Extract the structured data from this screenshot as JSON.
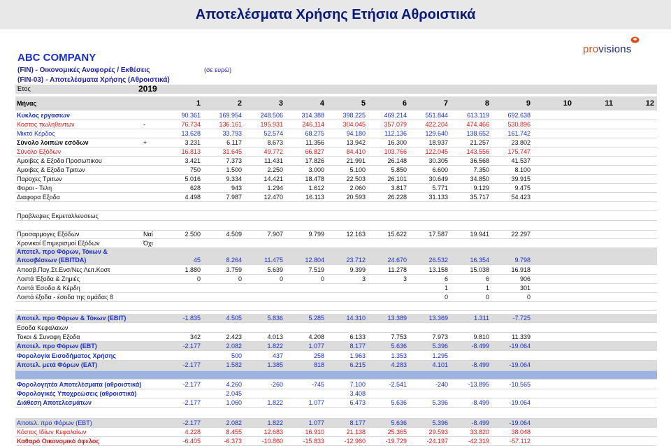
{
  "header": {
    "title": "Αποτελέσματα Χρήσης Ετήσια Αθροιστικά"
  },
  "company": "ABC COMPANY",
  "subtitle1": "(FIN) - Οικονομικές Αναφορές / Εκθέσεις",
  "subtitle2": "(FIN-03) - Αποτελέσματα Χρήσης (Αθροιστικά)",
  "currency_note": "(σε ευρώ)",
  "logo": {
    "part1": "pro",
    "part2": "visions",
    "icon": "orange-lens-icon"
  },
  "year_label": "Έτος",
  "year_value": "2019",
  "months_label": "Μήνας",
  "months": [
    "1",
    "2",
    "3",
    "4",
    "5",
    "6",
    "7",
    "8",
    "9",
    "10",
    "11",
    "12"
  ],
  "colors": {
    "blue": "#1a2fd0",
    "red": "#e01818",
    "gray_row": "#dcdcdc",
    "band": "#9db4e0"
  },
  "rows": [
    {
      "label": "Κυκλος εργασιων",
      "extra": "",
      "color": "blue",
      "bold": true,
      "values": [
        "90.361",
        "169.954",
        "248.506",
        "314.388",
        "398.225",
        "469.214",
        "551.844",
        "613.119",
        "692.638"
      ]
    },
    {
      "label": "Κοστος πωληθεντων",
      "extra": "-",
      "color": "red",
      "bold": false,
      "values": [
        "76.734",
        "136.161",
        "195.931",
        "246.114",
        "304.045",
        "357.079",
        "422.204",
        "474.466",
        "530.896"
      ]
    },
    {
      "label": "Μικτό Κέρδος",
      "extra": "",
      "color": "blue",
      "bold": false,
      "values": [
        "13.628",
        "33.793",
        "52.574",
        "68.275",
        "94.180",
        "112.136",
        "129.640",
        "138.652",
        "161.742"
      ]
    },
    {
      "label": "Σύνολο λοιπών εσόδων",
      "extra": "+",
      "color": "black",
      "bold": true,
      "values": [
        "3.231",
        "6.117",
        "8.673",
        "11.356",
        "13.942",
        "16.300",
        "18.937",
        "21.257",
        "23.802"
      ]
    },
    {
      "label": "Σύνολο Εξόδων",
      "extra": "",
      "color": "red",
      "bold": false,
      "values": [
        "16.813",
        "31.645",
        "49.772",
        "66.827",
        "84.410",
        "103.766",
        "122.045",
        "143.556",
        "175.747"
      ]
    },
    {
      "label": "Αμοιβες & Εξοδα Προσωπικου",
      "extra": "",
      "color": "black",
      "bold": false,
      "values": [
        "3.421",
        "7.373",
        "11.431",
        "17.826",
        "21.991",
        "26.148",
        "30.305",
        "36.568",
        "41.537"
      ]
    },
    {
      "label": "Αμοιβες & Εξοδα Τριτων",
      "extra": "",
      "color": "black",
      "bold": false,
      "values": [
        "750",
        "1.500",
        "2.250",
        "3.000",
        "5.100",
        "5.850",
        "6.600",
        "7.350",
        "8.100"
      ]
    },
    {
      "label": "Παροχες Τριτων",
      "extra": "",
      "color": "black",
      "bold": false,
      "values": [
        "5.016",
        "9.334",
        "14.421",
        "18.478",
        "22.503",
        "26.101",
        "30.649",
        "34.850",
        "39.915"
      ]
    },
    {
      "label": "Φοροι - Τελη",
      "extra": "",
      "color": "black",
      "bold": false,
      "values": [
        "628",
        "943",
        "1.294",
        "1.612",
        "2.060",
        "3.817",
        "5.771",
        "9.129",
        "9.475"
      ]
    },
    {
      "label": "Διαφορα Εξοδα",
      "extra": "",
      "color": "black",
      "bold": false,
      "values": [
        "4.498",
        "7.987",
        "12.470",
        "16.113",
        "20.593",
        "26.228",
        "31.133",
        "35.717",
        "54.423"
      ]
    },
    {
      "label": "",
      "extra": "",
      "color": "black",
      "bold": false,
      "values": []
    },
    {
      "label": "Προβλεψεις Εκμεταλλευσεως",
      "extra": "",
      "color": "black",
      "bold": false,
      "values": []
    },
    {
      "label": "",
      "extra": "",
      "color": "black",
      "bold": false,
      "values": []
    },
    {
      "label": "Προσαρμογες Εξόδων",
      "extra": "Ναί",
      "color": "black",
      "bold": false,
      "values": [
        "2.500",
        "4.509",
        "7.907",
        "9.799",
        "12.163",
        "15.622",
        "17.587",
        "19.941",
        "22.297"
      ]
    },
    {
      "label": "Χρονικοί Επιμερισμοί Εξόδων",
      "extra": "Όχι",
      "color": "black",
      "bold": false,
      "values": []
    },
    {
      "label": "Αποτελ. προ Φόρων, Τόκων & Αποσβέσεων (EBITDA)",
      "extra": "",
      "color": "blue",
      "bold": true,
      "values": [
        "45",
        "8.264",
        "11.475",
        "12.804",
        "23.712",
        "24.670",
        "26.532",
        "16.354",
        "9.798"
      ]
    },
    {
      "label": "Αποσβ.Παγ.Στ.Ενσ/Νες Λειτ.Κοστ",
      "extra": "",
      "color": "black",
      "bold": false,
      "values": [
        "1.880",
        "3.759",
        "5.639",
        "7.519",
        "9.399",
        "11.278",
        "13.158",
        "15.038",
        "16.918"
      ]
    },
    {
      "label": "Λοιπά Έξοδα & Ζημιές",
      "extra": "",
      "color": "black",
      "bold": false,
      "values": [
        "0",
        "0",
        "0",
        "0",
        "3",
        "3",
        "6",
        "6",
        "906"
      ]
    },
    {
      "label": "Λοιπά Έσοδα & Κέρδη",
      "extra": "",
      "color": "black",
      "bold": false,
      "values": [
        "",
        "",
        "",
        "",
        "",
        "",
        "1",
        "1",
        "301"
      ]
    },
    {
      "label": "Λοιπά έξοδα - έσοδα της ομάδας 8",
      "extra": "",
      "color": "black",
      "bold": false,
      "values": [
        "",
        "",
        "",
        "",
        "",
        "",
        "0",
        "0",
        "0"
      ]
    },
    {
      "label": "",
      "extra": "",
      "color": "black",
      "bold": false,
      "values": []
    },
    {
      "label": "Αποτελ. προ Φόρων & Τόκων (EBIT)",
      "extra": "",
      "color": "blue",
      "bold": true,
      "values": [
        "-1.835",
        "4.505",
        "5.836",
        "5.285",
        "14.310",
        "13.389",
        "13.369",
        "1.311",
        "-7.725"
      ]
    },
    {
      "label": "Εσοδα Κεφαλαιων",
      "extra": "",
      "color": "black",
      "bold": false,
      "values": []
    },
    {
      "label": "Τοκοι & Συναφη Εξοδα",
      "extra": "",
      "color": "black",
      "bold": false,
      "values": [
        "342",
        "2.423",
        "4.013",
        "4.208",
        "6.133",
        "7.753",
        "7.973",
        "9.810",
        "11.339"
      ]
    },
    {
      "label": "Αποτελ. προ Φόρων (EBT)",
      "extra": "",
      "color": "blue",
      "bold": true,
      "values": [
        "-2.177",
        "2.082",
        "1.822",
        "1.077",
        "8.177",
        "5.636",
        "5.396",
        "-8.499",
        "-19.064"
      ]
    },
    {
      "label": "Φορολογία Εισοδήματος Χρήσης",
      "extra": "",
      "color": "blue",
      "bold": true,
      "values": [
        "",
        "500",
        "437",
        "258",
        "1.963",
        "1.353",
        "1.295",
        "",
        ""
      ]
    },
    {
      "label": "Αποτελ. μετά Φόρων (EAT)",
      "extra": "",
      "color": "blue",
      "bold": true,
      "values": [
        "-2.177",
        "1.582",
        "1.385",
        "818",
        "6.215",
        "4.283",
        "4.101",
        "-8.499",
        "-19.064"
      ]
    },
    {
      "label": "",
      "extra": "",
      "color": "black",
      "bold": false,
      "values": []
    },
    {
      "label": "Φορολογητέα Αποτελέσματα (αθροιστικά)",
      "extra": "",
      "color": "blue",
      "bold": true,
      "values": [
        "-2.177",
        "4.260",
        "-260",
        "-745",
        "7.100",
        "-2.541",
        "-240",
        "-13.895",
        "-10.565"
      ]
    },
    {
      "label": "Φορολογικές Υποχρεώσεις (αθροιστικά)",
      "extra": "",
      "color": "blue",
      "bold": true,
      "values": [
        "",
        "2.045",
        "",
        "",
        "3.408",
        "",
        "",
        "",
        ""
      ]
    },
    {
      "label": "Διάθεση Αποτελεσμάτων",
      "extra": "",
      "color": "blue",
      "bold": true,
      "values": [
        "-2.177",
        "1.060",
        "1.822",
        "1.077",
        "6.473",
        "5.636",
        "5.396",
        "-8.499",
        "-19.064"
      ]
    },
    {
      "label": "",
      "extra": "",
      "color": "black",
      "bold": false,
      "values": []
    },
    {
      "label": "Αποτελ. προ Φόρων (EBT)",
      "extra": "",
      "color": "blue",
      "bold": false,
      "values": [
        "-2.177",
        "2.082",
        "1.822",
        "1.077",
        "8.177",
        "5.636",
        "5.396",
        "-8.499",
        "-19.064"
      ]
    },
    {
      "label": "Κόστος Ιδίων Κεφαλαίων",
      "extra": "",
      "color": "red",
      "bold": false,
      "values": [
        "4.228",
        "8.455",
        "12.683",
        "16.910",
        "21.138",
        "25.365",
        "29.593",
        "33.820",
        "38.048"
      ]
    },
    {
      "label": "Καθαρό Οικονομικό όφελος",
      "extra": "",
      "color": "red",
      "bold": true,
      "values": [
        "-6.405",
        "-6.373",
        "-10.860",
        "-15.833",
        "-12.960",
        "-19.729",
        "-24.197",
        "-42.319",
        "-57.112"
      ]
    }
  ]
}
